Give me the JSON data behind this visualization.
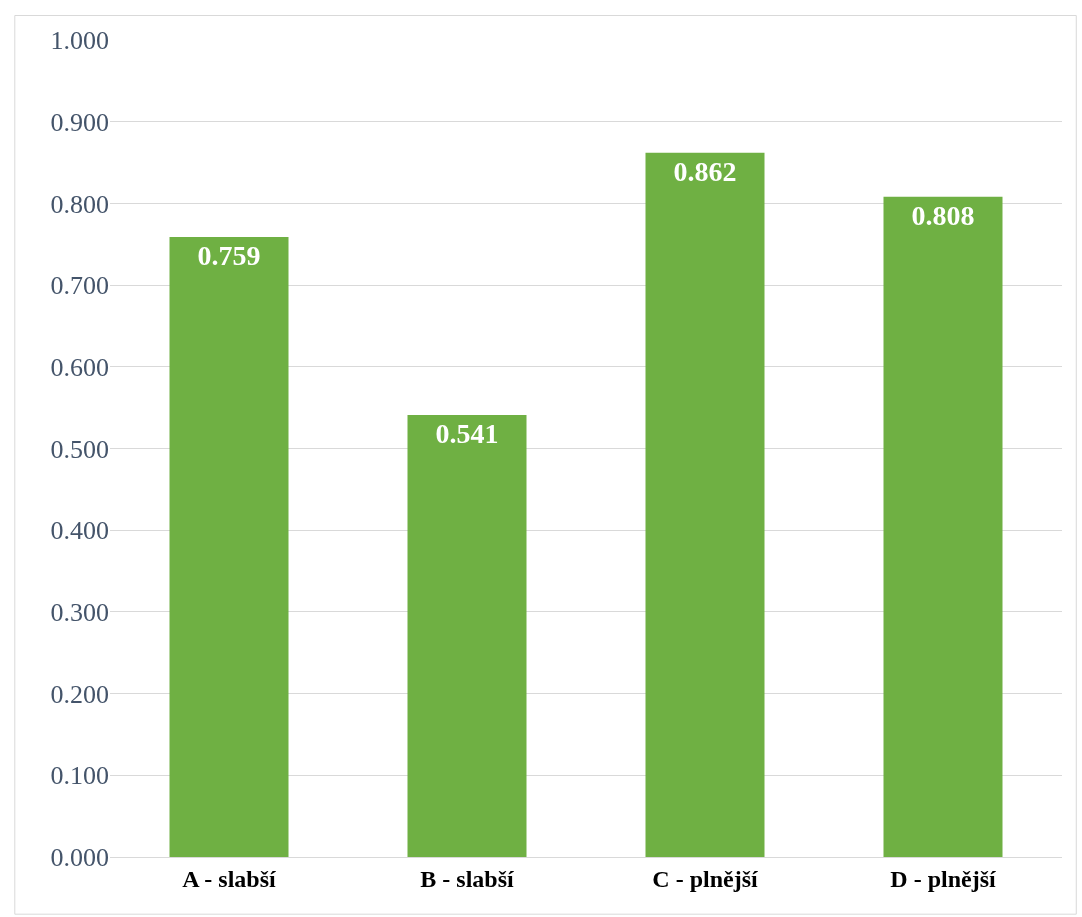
{
  "chart_data": {
    "type": "bar",
    "categories": [
      "A - slabší",
      "B - slabší",
      "C - plnější",
      "D - plnější"
    ],
    "values": [
      0.759,
      0.541,
      0.862,
      0.808
    ],
    "value_labels": [
      "0.759",
      "0.541",
      "0.862",
      "0.808"
    ],
    "color": "#6fb043",
    "ylim": [
      0,
      1
    ],
    "yticks": [
      {
        "value": 0,
        "label": "0.000"
      },
      {
        "value": 0.1,
        "label": "0.100"
      },
      {
        "value": 0.2,
        "label": "0.200"
      },
      {
        "value": 0.3,
        "label": "0.300"
      },
      {
        "value": 0.4,
        "label": "0.400"
      },
      {
        "value": 0.5,
        "label": "0.500"
      },
      {
        "value": 0.6,
        "label": "0.600"
      },
      {
        "value": 0.7,
        "label": "0.700"
      },
      {
        "value": 0.8,
        "label": "0.800"
      },
      {
        "value": 0.9,
        "label": "0.900"
      },
      {
        "value": 1.0,
        "label": "1.000"
      }
    ],
    "grid": "y",
    "legend": false
  }
}
